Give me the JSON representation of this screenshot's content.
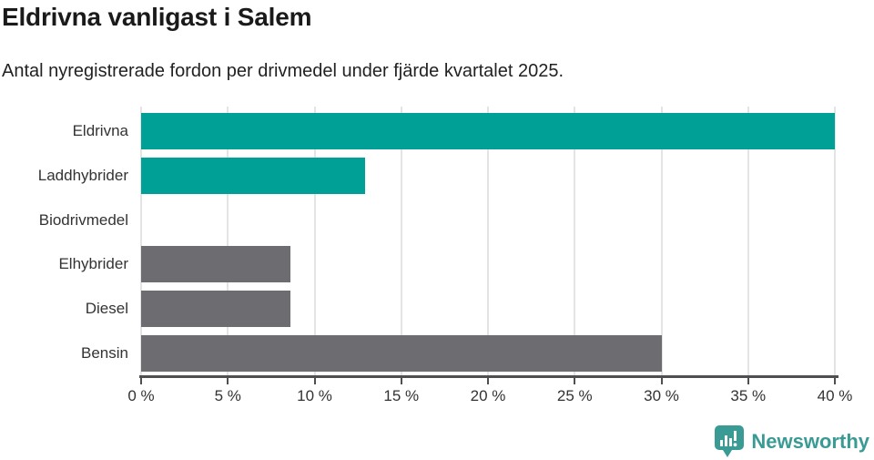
{
  "title": "Eldrivna vanligast i Salem",
  "subtitle": "Antal nyregistrerade fordon per drivmedel under fjärde kvartalet 2025.",
  "chart_data": {
    "type": "bar",
    "orientation": "horizontal",
    "title": "Eldrivna vanligast i Salem",
    "subtitle": "Antal nyregistrerade fordon per drivmedel under fjärde kvartalet 2025.",
    "categories": [
      "Eldrivna",
      "Laddhybrider",
      "Biodrivmedel",
      "Elhybrider",
      "Diesel",
      "Bensin"
    ],
    "values": [
      40,
      12.9,
      0,
      8.6,
      8.6,
      30
    ],
    "unit": "%",
    "xlim": [
      0,
      40
    ],
    "x_tick_labels": [
      "0 %",
      "5 %",
      "10 %",
      "15 %",
      "20 %",
      "25 %",
      "30 %",
      "35 %",
      "40 %"
    ],
    "x_tick_values": [
      0,
      5,
      10,
      15,
      20,
      25,
      30,
      35,
      40
    ],
    "grid": true,
    "legend": false,
    "bar_colors": [
      "#00a096",
      "#00a096",
      "#6c6c71",
      "#6c6c71",
      "#6c6c71",
      "#6c6c71"
    ]
  },
  "colors": {
    "highlight_teal": "#00a096",
    "neutral_gray": "#6c6c71",
    "gridline": "#e4e4e4",
    "axis": "#4f4f51",
    "text": "#333333",
    "title_text": "#1a1a1a",
    "logo_teal": "#3a9a94"
  },
  "branding": {
    "logo_text": "Newsworthy",
    "logo_icon": "newsworthy-chart-bubble-icon"
  }
}
